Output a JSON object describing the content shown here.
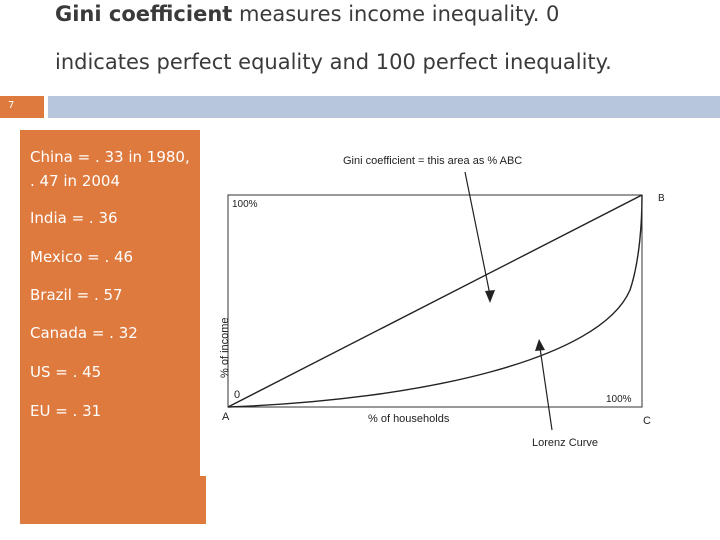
{
  "title": {
    "line1_bold": "Gini coefficient",
    "line1_rest": " measures income inequality. 0",
    "line2": "indicates perfect equality and 100 perfect inequality."
  },
  "slide_number": "7",
  "items": [
    {
      "text": "China = . 33 in 1980,"
    },
    {
      "text": ". 47 in 2004"
    },
    {
      "text": "India = . 36"
    },
    {
      "text": "Mexico = . 46"
    },
    {
      "text": "Brazil = . 57"
    },
    {
      "text": "Canada = . 32"
    },
    {
      "text": "US = . 45"
    },
    {
      "text": "EU = . 31"
    }
  ],
  "figure": {
    "caption": "Gini coefficient = this area as % ABC",
    "label_100_top": "100%",
    "label_B": "B",
    "ylabel": "% of income",
    "label_0": "0",
    "label_100_right": "100%",
    "label_A": "A",
    "xlabel": "% of households",
    "label_C": "C",
    "lorenz_label": "Lorenz Curve"
  },
  "colors": {
    "accent_orange": "#df7a3e",
    "bar_blue": "#b7c6dc"
  }
}
